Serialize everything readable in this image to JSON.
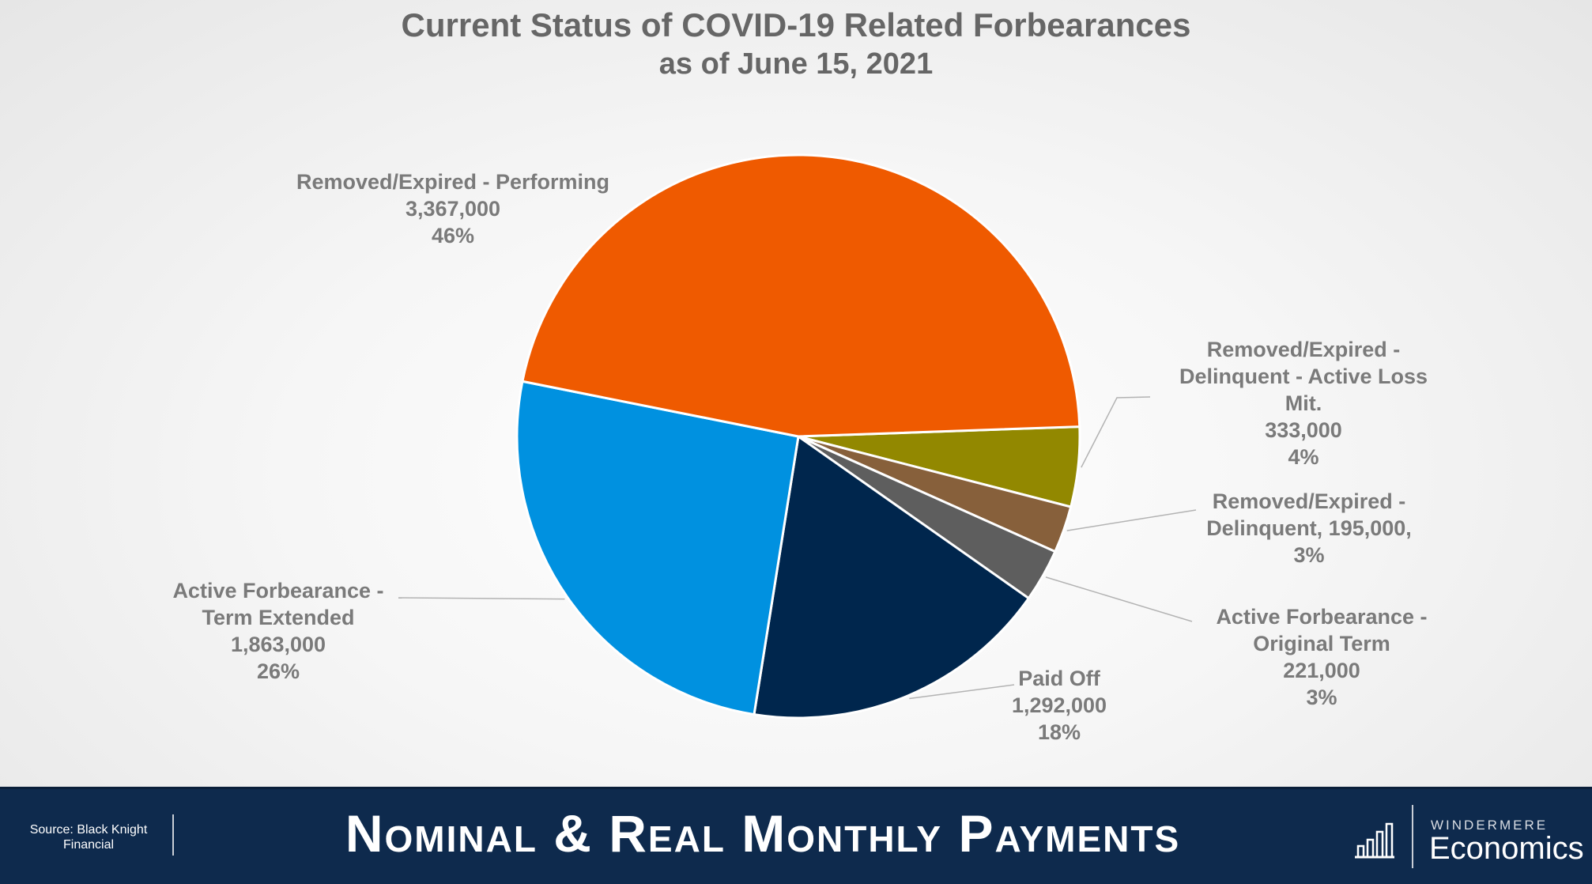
{
  "chart_data": {
    "type": "pie",
    "title": "Current Status of COVID-19 Related Forbearances",
    "subtitle": "as of June 15, 2021",
    "slices": [
      {
        "label": "Removed/Expired - Performing",
        "value": 3367000,
        "value_text": "3,367,000",
        "percent_text": "46%",
        "color": "#ef5a00"
      },
      {
        "label": "Removed/Expired - Delinquent - Active Loss Mit.",
        "value": 333000,
        "value_text": "333,000",
        "percent_text": "4%",
        "color": "#928800"
      },
      {
        "label": "Removed/Expired - Delinquent",
        "value": 195000,
        "value_text": "195,000",
        "percent_text": "3%",
        "color": "#87603b"
      },
      {
        "label": "Active Forbearance - Original Term",
        "value": 221000,
        "value_text": "221,000",
        "percent_text": "3%",
        "color": "#5e5e5e"
      },
      {
        "label": "Paid Off",
        "value": 1292000,
        "value_text": "1,292,000",
        "percent_text": "18%",
        "color": "#00264d"
      },
      {
        "label": "Active Forbearance - Term Extended",
        "value": 1863000,
        "value_text": "1,863,000",
        "percent_text": "26%",
        "color": "#0091e0"
      }
    ],
    "label_text": [
      [
        "Removed/Expired - Performing",
        "3,367,000",
        "46%"
      ],
      [
        "Removed/Expired -",
        "Delinquent - Active Loss",
        "Mit.",
        "333,000",
        "4%"
      ],
      [
        "Removed/Expired -",
        "Delinquent, 195,000,",
        "3%"
      ],
      [
        "Active Forbearance -",
        "Original Term",
        "221,000",
        "3%"
      ],
      [
        "Paid Off",
        "1,292,000",
        "18%"
      ],
      [
        "Active Forbearance -",
        "Term Extended",
        "1,863,000",
        "26%"
      ]
    ]
  },
  "footer": {
    "source": "Source: Black Knight Financial",
    "title": "Nominal & Real Monthly Payments",
    "brand_top": "WINDERMERE",
    "brand_name": "Economics"
  },
  "colors": {
    "footer_bg": "#0e2a4d",
    "title_text": "#666666",
    "label_text": "#7a7a7a"
  }
}
